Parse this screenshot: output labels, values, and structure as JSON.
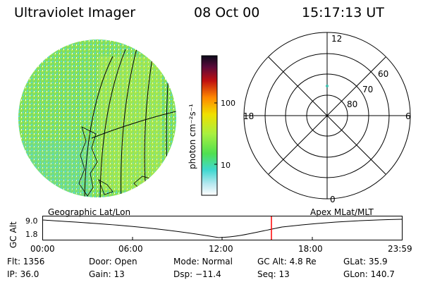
{
  "header": {
    "title": "Ultraviolet Imager",
    "date": "08 Oct 00",
    "time": "15:17:13 UT"
  },
  "colorbar": {
    "unit_label": "photon cm⁻²s⁻¹",
    "ticks": [
      "100",
      "10"
    ]
  },
  "polar_plot": {
    "labels": {
      "top": "12",
      "bottom": "0",
      "left": "18",
      "right": "6"
    },
    "lat_rings": [
      "60",
      "70",
      "80"
    ]
  },
  "map_label": "Geographic Lat/Lon",
  "apex_label": "Apex MLat/MLT",
  "altitude_plot": {
    "axis_label": "GC Alt",
    "y_ticks": [
      "9.0",
      "1.8"
    ],
    "x_ticks": [
      "00:00",
      "06:00",
      "12:00",
      "18:00",
      "23:59"
    ],
    "marker_time": "15:17",
    "marker_color": "#ff0000"
  },
  "info": {
    "flt": "Flt: 1356",
    "ip": "IP: 36.0",
    "door": "Door: Open",
    "gain": "Gain: 13",
    "mode": "Mode: Normal",
    "dsp": "Dsp:  −11.4",
    "gc_alt": "GC Alt: 4.8 Re",
    "seq": "Seq: 13",
    "glat": "GLat:  35.9",
    "glon": "GLon: 140.7"
  },
  "colors": {
    "image_main": "#7fe05a",
    "image_cyan": "#4fd8e0",
    "image_yellow": "#c8f040"
  }
}
